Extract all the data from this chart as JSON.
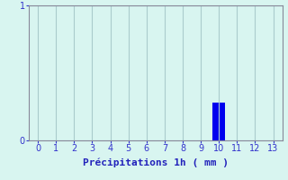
{
  "categories": [
    0,
    1,
    2,
    3,
    4,
    5,
    6,
    7,
    8,
    9,
    10,
    11,
    12,
    13
  ],
  "values": [
    0,
    0,
    0,
    0,
    0,
    0,
    0,
    0,
    0,
    0,
    0.28,
    0,
    0,
    0
  ],
  "bar_color": "#0000ee",
  "xlabel": "Précipitations 1h ( mm )",
  "ylim": [
    0,
    1
  ],
  "xlim": [
    -0.5,
    13.5
  ],
  "yticks": [
    0,
    1
  ],
  "xticks": [
    0,
    1,
    2,
    3,
    4,
    5,
    6,
    7,
    8,
    9,
    10,
    11,
    12,
    13
  ],
  "background_color": "#d8f5f0",
  "grid_color": "#aacccc",
  "tick_fontsize": 7,
  "xlabel_fontsize": 8,
  "bar_width": 0.7,
  "tick_color": "#3333cc",
  "label_color": "#2222bb",
  "spine_color": "#888899"
}
